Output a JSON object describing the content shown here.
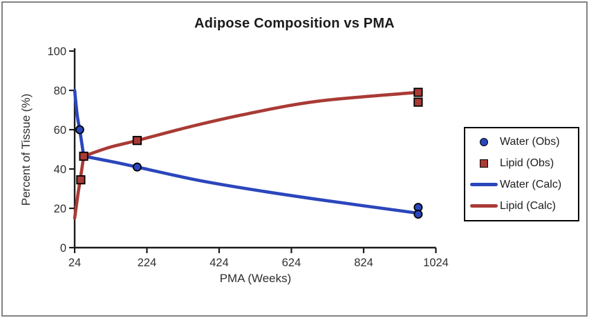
{
  "frame": {
    "background": "#ffffff",
    "border_color": "#828282"
  },
  "chart_data": {
    "type": "line",
    "title": "Adipose Composition vs PMA",
    "xlabel": "PMA (Weeks)",
    "ylabel": "Percent of Tissue (%)",
    "xlim": [
      24,
      1024
    ],
    "ylim": [
      0,
      100
    ],
    "x_ticks": [
      24,
      224,
      424,
      624,
      824,
      1024
    ],
    "y_ticks": [
      0,
      20,
      40,
      60,
      80,
      100
    ],
    "grid": false,
    "legend_position": "outside-right",
    "colors": {
      "water": "#2B46BC",
      "lipid": "#A93A35",
      "marker_outline": "#000000",
      "axis": "#1a1a1a",
      "tick_text": "#2f2f2f"
    },
    "series": [
      {
        "name": "Water (Obs)",
        "type": "scatter",
        "marker": "circle",
        "color": "#2B46BC",
        "points": [
          [
            38,
            60
          ],
          [
            197,
            41
          ],
          [
            975,
            20.5
          ],
          [
            975,
            17
          ]
        ]
      },
      {
        "name": "Lipid (Obs)",
        "type": "scatter",
        "marker": "square",
        "color": "#A93A35",
        "points": [
          [
            41,
            34.5
          ],
          [
            49,
            46.5
          ],
          [
            197,
            54.5
          ],
          [
            975,
            79
          ],
          [
            975,
            74
          ]
        ]
      },
      {
        "name": "Water (Calc)",
        "type": "line",
        "color": "#2B46BC",
        "split_index": 4,
        "points": [
          [
            24,
            80
          ],
          [
            31,
            67.5
          ],
          [
            38,
            60
          ],
          [
            44,
            52.8
          ],
          [
            49,
            46.5
          ],
          [
            120,
            44
          ],
          [
            197,
            41
          ],
          [
            354,
            34.7
          ],
          [
            500,
            30
          ],
          [
            698,
            24.5
          ],
          [
            976,
            17.5
          ]
        ]
      },
      {
        "name": "Lipid (Calc)",
        "type": "line",
        "color": "#A93A35",
        "split_index": 3,
        "points": [
          [
            24,
            15
          ],
          [
            33,
            27
          ],
          [
            41,
            36.5
          ],
          [
            49,
            46.5
          ],
          [
            120,
            51
          ],
          [
            197,
            54.5
          ],
          [
            354,
            62
          ],
          [
            500,
            68
          ],
          [
            698,
            74.5
          ],
          [
            976,
            79
          ]
        ]
      }
    ],
    "legend": [
      {
        "label": "Water (Obs)",
        "swatch": "circle",
        "color": "#2B46BC"
      },
      {
        "label": "Lipid (Obs)",
        "swatch": "square",
        "color": "#A93A35"
      },
      {
        "label": "Water (Calc)",
        "swatch": "line",
        "color": "#2B46BC"
      },
      {
        "label": "Lipid (Calc)",
        "swatch": "line",
        "color": "#A93A35"
      }
    ]
  }
}
